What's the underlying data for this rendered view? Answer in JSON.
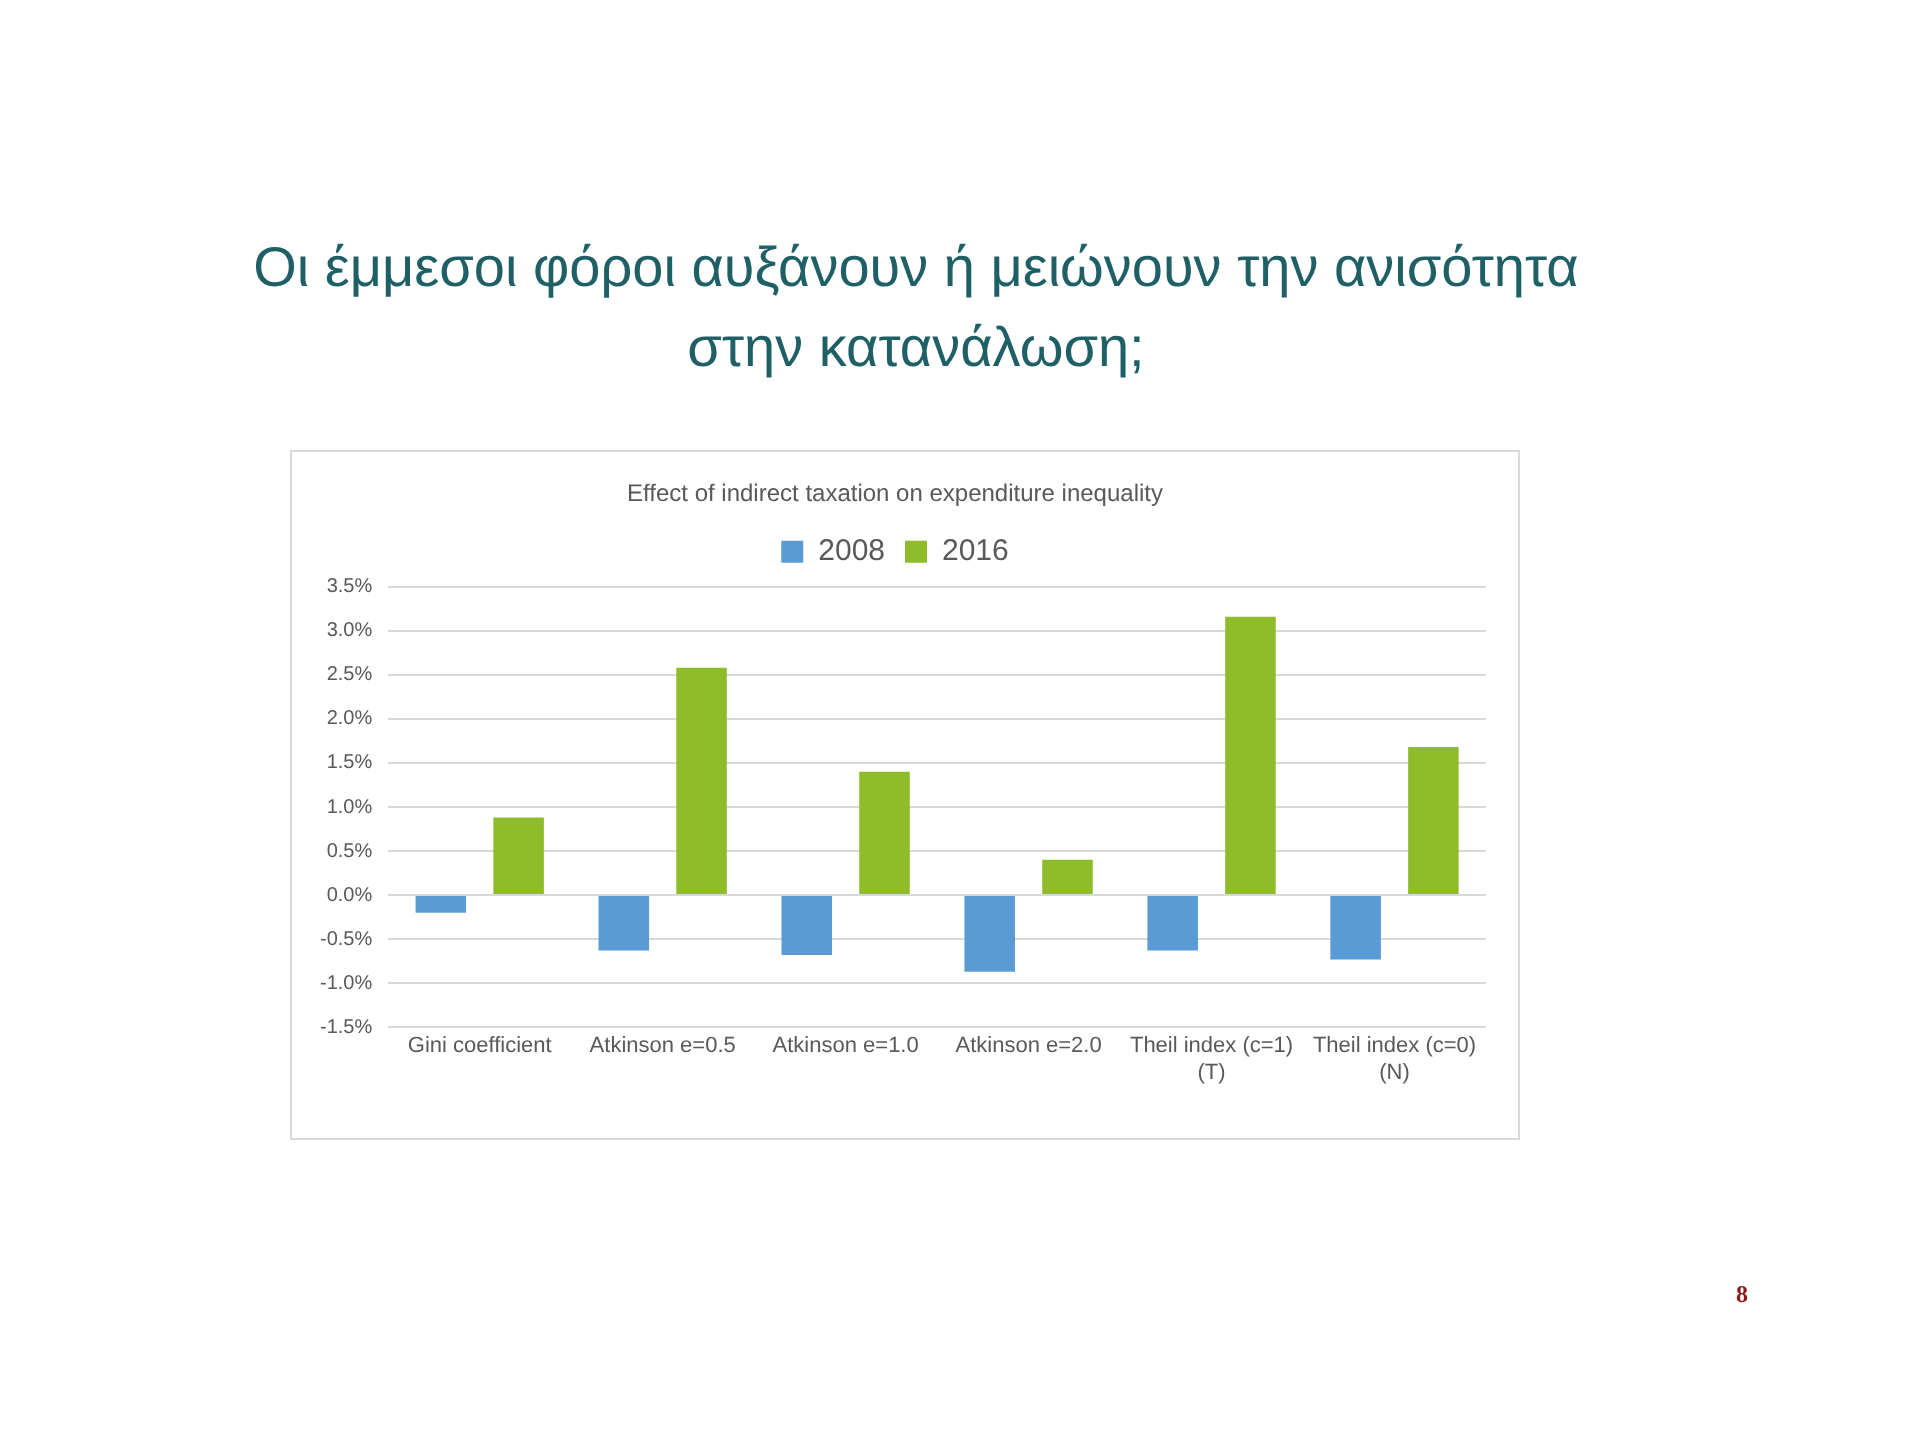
{
  "chart_data": {
    "type": "bar",
    "title": "Οι έμμεσοι φόροι αυξάνουν ή μειώνουν την ανισότητα στην κατανάλωση;",
    "subtitle": "Effect of indirect taxation on expenditure inequality",
    "categories": [
      "Gini coefficient",
      "Atkinson e=0.5",
      "Atkinson e=1.0",
      "Atkinson e=2.0",
      "Theil index (c=1)\n(T)",
      "Theil index (c=0)\n(N)"
    ],
    "series": [
      {
        "name": "2008",
        "color": "#5b9bd5",
        "values": [
          -0.2,
          -0.63,
          -0.68,
          -0.87,
          -0.63,
          -0.73
        ]
      },
      {
        "name": "2016",
        "color": "#8fbc2a",
        "values": [
          0.88,
          2.58,
          1.4,
          0.4,
          3.16,
          1.68
        ]
      }
    ],
    "ylim": [
      -1.5,
      3.5
    ],
    "yticks": [
      {
        "value": -1.5,
        "label": "-1.5%"
      },
      {
        "value": -1,
        "label": "-1.0%"
      },
      {
        "value": -0.5,
        "label": "-0.5%"
      },
      {
        "value": 0,
        "label": "0.0%"
      },
      {
        "value": 0.5,
        "label": "0.5%"
      },
      {
        "value": 1,
        "label": "1.0%"
      },
      {
        "value": 1.5,
        "label": "1.5%"
      },
      {
        "value": 2,
        "label": "2.0%"
      },
      {
        "value": 2.5,
        "label": "2.5%"
      },
      {
        "value": 3,
        "label": "3.0%"
      },
      {
        "value": 3.5,
        "label": "3.5%"
      }
    ],
    "grid": "y",
    "legend": "top",
    "annotations": [
      "8"
    ]
  }
}
